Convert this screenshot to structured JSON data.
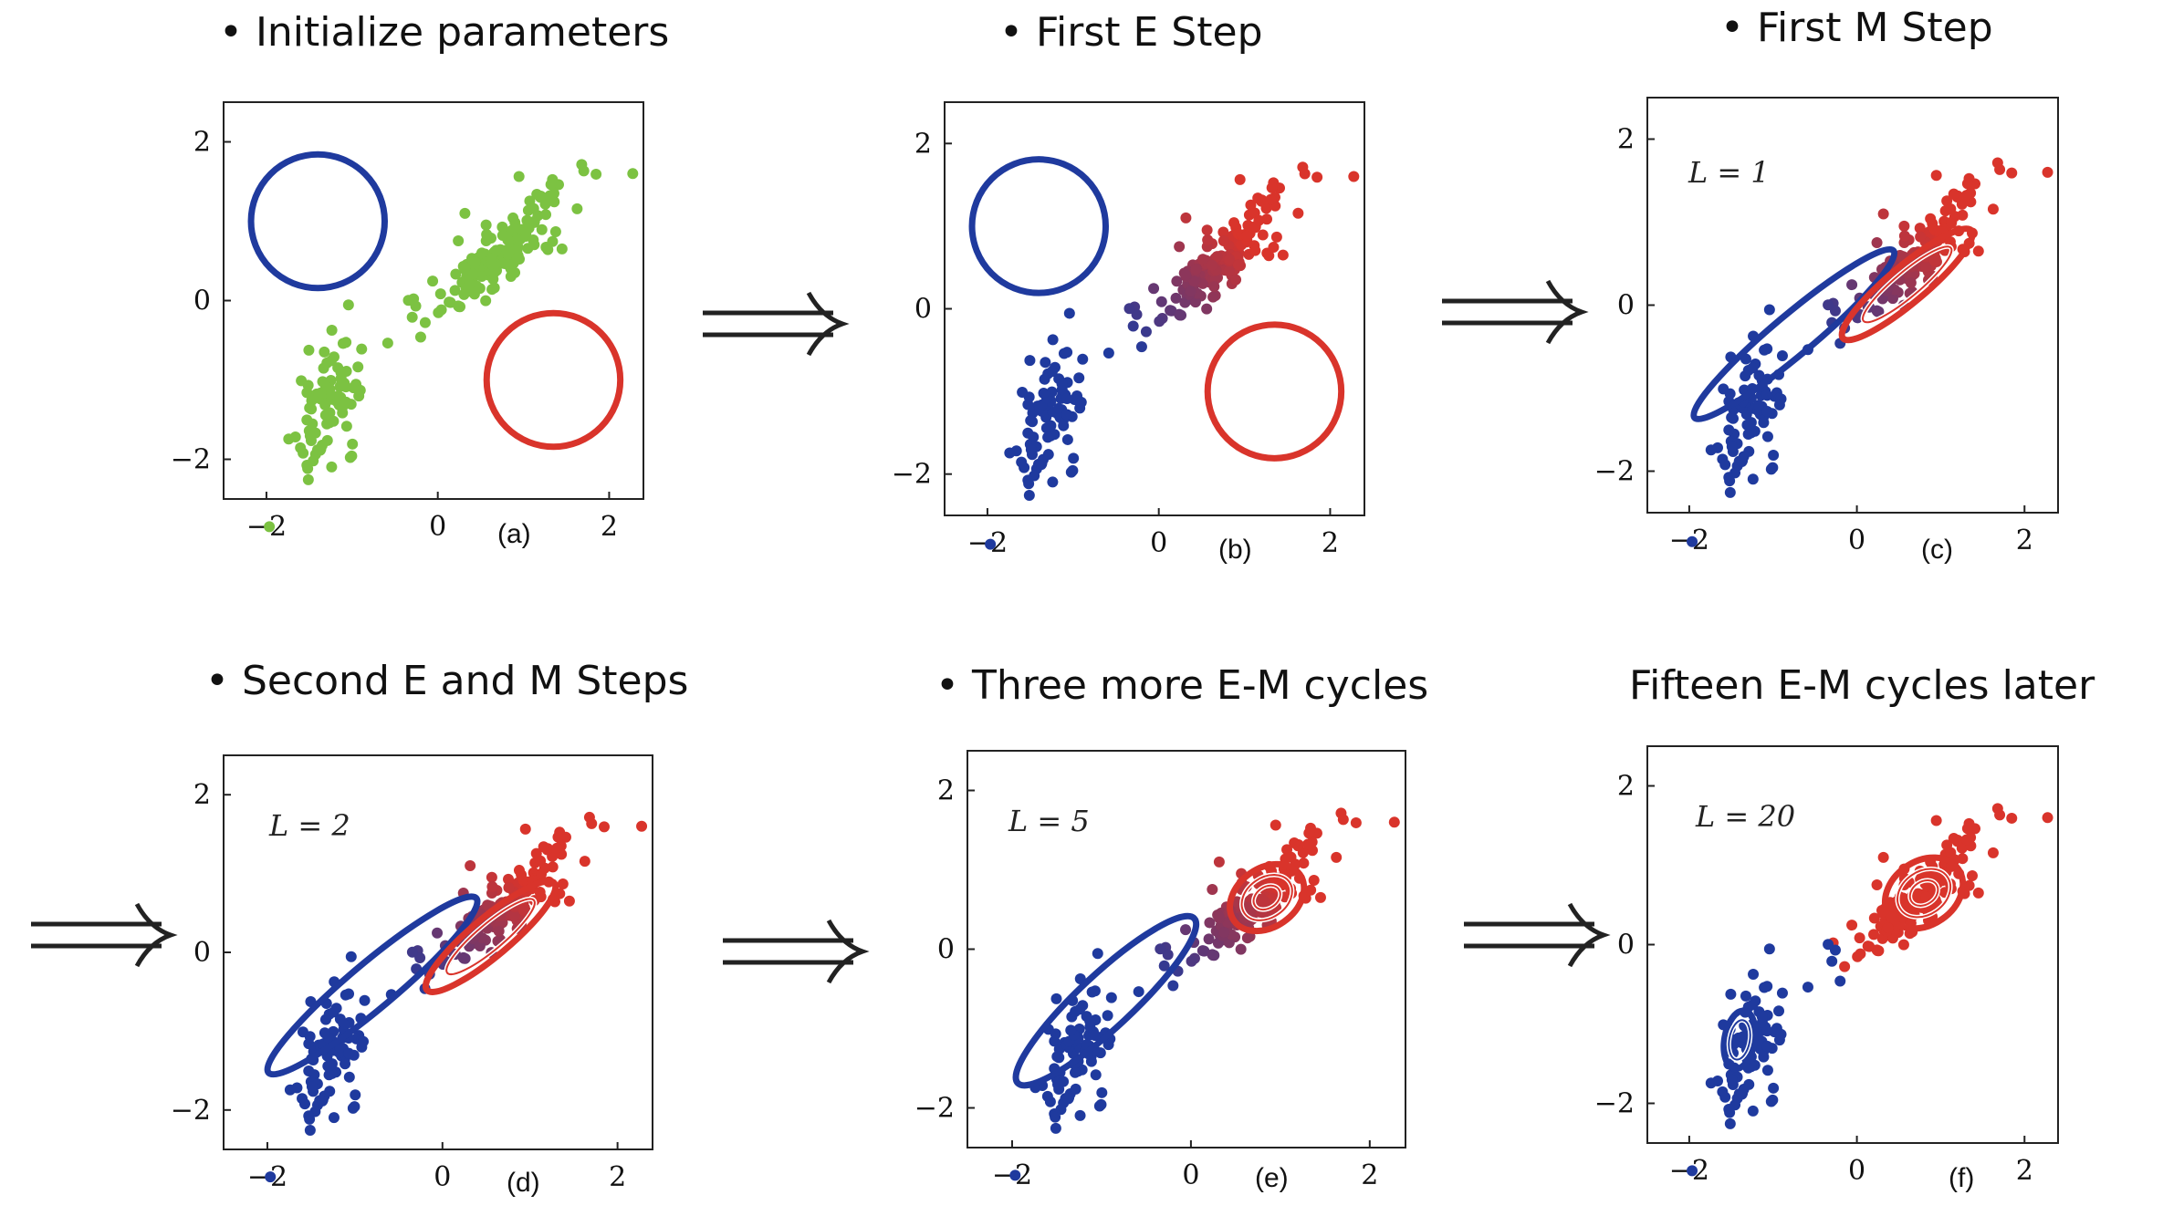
{
  "figure": {
    "colors": {
      "blue": "#1f3a9e",
      "red": "#d9342b",
      "green": "#7cc242",
      "text": "#111111"
    },
    "ticks": {
      "x": [
        "−2",
        "0",
        "2"
      ],
      "y": [
        "2",
        "0",
        "−2"
      ],
      "x_values": [
        -2,
        0,
        2
      ],
      "y_values": [
        2,
        0,
        -2
      ]
    },
    "axis_range": {
      "x": [
        -2.5,
        2.4
      ],
      "y": [
        -2.5,
        2.5
      ]
    },
    "panels": [
      {
        "id": "a",
        "title": "• Initialize parameters",
        "sub_label": "(a)",
        "iter_label": "",
        "coloring": "green",
        "components": [
          {
            "color": "blue",
            "center": [
              -1.4,
              1.0
            ],
            "rx": 0.78,
            "ry": 0.78,
            "angle": 0,
            "rings": 1
          },
          {
            "color": "red",
            "center": [
              1.35,
              -1.0
            ],
            "rx": 0.78,
            "ry": 0.78,
            "angle": 0,
            "rings": 1
          }
        ]
      },
      {
        "id": "b",
        "title": "• First E Step",
        "sub_label": "(b)",
        "iter_label": "",
        "coloring": "resp",
        "components": [
          {
            "color": "blue",
            "center": [
              -1.4,
              1.0
            ],
            "rx": 0.78,
            "ry": 0.78,
            "angle": 0,
            "rings": 1
          },
          {
            "color": "red",
            "center": [
              1.35,
              -1.0
            ],
            "rx": 0.78,
            "ry": 0.78,
            "angle": 0,
            "rings": 1
          }
        ]
      },
      {
        "id": "c",
        "title": "• First M Step",
        "sub_label": "(c)",
        "iter_label": "L = 1",
        "coloring": "resp",
        "components": [
          {
            "color": "blue",
            "center": [
              -0.75,
              -0.35
            ],
            "rx": 1.55,
            "ry": 0.24,
            "angle": 40,
            "rings": 1
          },
          {
            "color": "red",
            "center": [
              0.6,
              0.25
            ],
            "rx": 1.0,
            "ry": 0.22,
            "angle": 40,
            "rings": 2
          }
        ]
      },
      {
        "id": "d",
        "title": "• Second E and M Steps",
        "sub_label": "(d)",
        "iter_label": "L = 2",
        "coloring": "resp",
        "components": [
          {
            "color": "blue",
            "center": [
              -0.8,
              -0.42
            ],
            "rx": 1.55,
            "ry": 0.26,
            "angle": 40,
            "rings": 1
          },
          {
            "color": "red",
            "center": [
              0.55,
              0.2
            ],
            "rx": 0.95,
            "ry": 0.22,
            "angle": 40,
            "rings": 2
          }
        ]
      },
      {
        "id": "e",
        "title": "• Three more E-M cycles",
        "sub_label": "(e)",
        "iter_label": "L = 5",
        "coloring": "resp",
        "components": [
          {
            "color": "blue",
            "center": [
              -0.95,
              -0.65
            ],
            "rx": 1.35,
            "ry": 0.3,
            "angle": 43,
            "rings": 1
          },
          {
            "color": "red",
            "center": [
              0.85,
              0.65
            ],
            "rx": 0.45,
            "ry": 0.33,
            "angle": 35,
            "rings": 3
          }
        ]
      },
      {
        "id": "f",
        "title": "Fifteen E-M cycles later",
        "sub_label": "(f)",
        "iter_label": "L = 20",
        "coloring": "final",
        "components": [
          {
            "color": "blue",
            "center": [
              -1.4,
              -1.2
            ],
            "rx": 0.35,
            "ry": 0.18,
            "angle": 80,
            "rings": 2
          },
          {
            "color": "red",
            "center": [
              0.8,
              0.65
            ],
            "rx": 0.5,
            "ry": 0.38,
            "angle": 35,
            "rings": 3
          }
        ]
      }
    ]
  }
}
